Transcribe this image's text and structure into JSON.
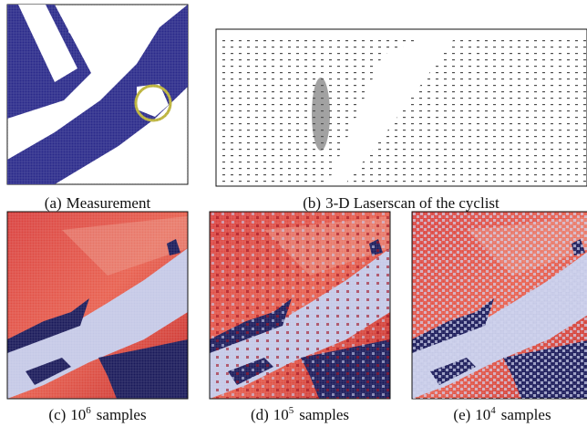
{
  "figure": {
    "panels": [
      {
        "label": "(a)",
        "caption": "Measurement"
      },
      {
        "label": "(b)",
        "caption": "3-D Laserscan of the cyclist"
      },
      {
        "label": "(c)",
        "base": "10",
        "exponent": "6",
        "caption": "samples"
      },
      {
        "label": "(d)",
        "base": "10",
        "exponent": "5",
        "caption": "samples"
      },
      {
        "label": "(e)",
        "base": "10",
        "exponent": "4",
        "caption": "samples"
      }
    ]
  }
}
